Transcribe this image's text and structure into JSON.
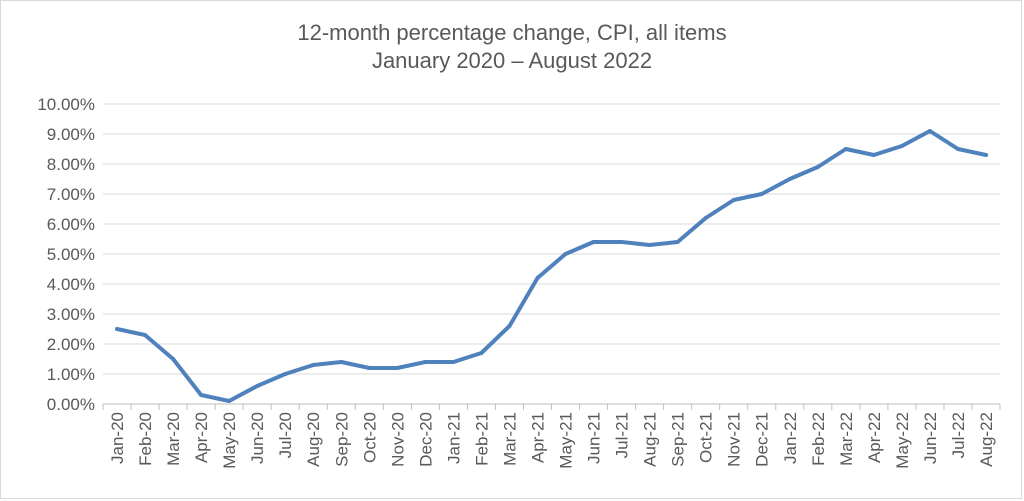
{
  "chart_data": {
    "type": "line",
    "title": "12-month percentage change, CPI, all items",
    "subtitle": "January 2020 – August 2022",
    "xlabel": "",
    "ylabel": "",
    "ylim": [
      0,
      10
    ],
    "y_tick_labels": [
      "0.00%",
      "1.00%",
      "2.00%",
      "3.00%",
      "4.00%",
      "5.00%",
      "6.00%",
      "7.00%",
      "8.00%",
      "9.00%",
      "10.00%"
    ],
    "categories": [
      "Jan-20",
      "Feb-20",
      "Mar-20",
      "Apr-20",
      "May-20",
      "Jun-20",
      "Jul-20",
      "Aug-20",
      "Sep-20",
      "Oct-20",
      "Nov-20",
      "Dec-20",
      "Jan-21",
      "Feb-21",
      "Mar-21",
      "Apr-21",
      "May-21",
      "Jun-21",
      "Jul-21",
      "Aug-21",
      "Sep-21",
      "Oct-21",
      "Nov-21",
      "Dec-21",
      "Jan-22",
      "Feb-22",
      "Mar-22",
      "Apr-22",
      "May-22",
      "Jun-22",
      "Jul-22",
      "Aug-22"
    ],
    "series": [
      {
        "values": [
          2.5,
          2.3,
          1.5,
          0.3,
          0.1,
          0.6,
          1.0,
          1.3,
          1.4,
          1.2,
          1.2,
          1.4,
          1.4,
          1.7,
          2.6,
          4.2,
          5.0,
          5.4,
          5.4,
          5.3,
          5.4,
          6.2,
          6.8,
          7.0,
          7.5,
          7.9,
          8.5,
          8.3,
          8.6,
          9.1,
          8.5,
          8.3
        ],
        "color": "#4f81bd"
      }
    ],
    "grid": true,
    "legend": "none",
    "gridline_color": "#d9d9d9",
    "axis_color": "#bfbfbf"
  }
}
